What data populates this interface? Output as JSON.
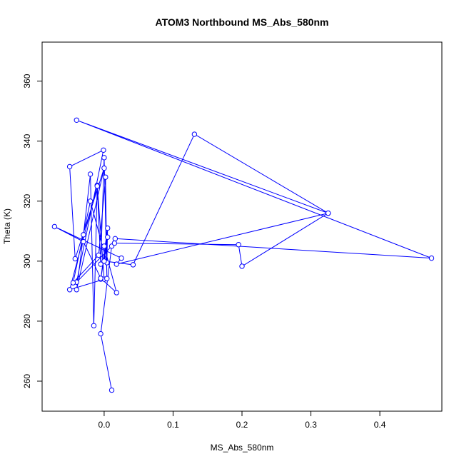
{
  "chart_data": {
    "type": "line",
    "title": "ATOM3 Northbound MS_Abs_580nm",
    "xlabel": "MS_Abs_580nm",
    "ylabel": "Theta (K)",
    "xlim": [
      -0.09,
      0.49
    ],
    "ylim": [
      250,
      373
    ],
    "xticks": [
      0.0,
      0.1,
      0.2,
      0.3,
      0.4
    ],
    "xtick_labels": [
      "0.0",
      "0.1",
      "0.2",
      "0.3",
      "0.4"
    ],
    "yticks": [
      260,
      280,
      300,
      320,
      340,
      360
    ],
    "ytick_labels": [
      "260",
      "280",
      "300",
      "320",
      "340",
      "360"
    ],
    "line_color": "#0000ff",
    "marker": "open-circle",
    "series": [
      {
        "points": [
          [
            0.011,
            257.0
          ],
          [
            -0.005,
            275.8
          ],
          [
            0.011,
            305.0
          ],
          [
            -0.04,
            293.0
          ],
          [
            -0.001,
            337.0
          ],
          [
            -0.05,
            331.5
          ],
          [
            -0.042,
            300.8
          ],
          [
            0.0,
            331.0
          ],
          [
            -0.04,
            290.5
          ],
          [
            -0.03,
            308.8
          ],
          [
            -0.02,
            329.0
          ],
          [
            -0.015,
            278.5
          ],
          [
            -0.01,
            325.3
          ],
          [
            0.0,
            294.0
          ],
          [
            -0.05,
            290.5
          ],
          [
            -0.01,
            325.0
          ],
          [
            -0.005,
            299.0
          ],
          [
            0.0,
            334.5
          ],
          [
            0.004,
            294.2
          ],
          [
            0.002,
            328.0
          ],
          [
            -0.008,
            302.0
          ],
          [
            -0.045,
            292.8
          ],
          [
            -0.02,
            320.0
          ],
          [
            0.004,
            299.5
          ],
          [
            0.005,
            311.0
          ],
          [
            -0.005,
            294.0
          ],
          [
            0.005,
            308.0
          ],
          [
            0.0,
            300.0
          ],
          [
            0.042,
            298.8
          ],
          [
            0.131,
            342.3
          ],
          [
            0.325,
            316.0
          ],
          [
            -0.04,
            347.0
          ],
          [
            0.475,
            301.0
          ],
          [
            0.016,
            307.5
          ],
          [
            0.015,
            306.0
          ],
          [
            0.195,
            305.5
          ],
          [
            0.2,
            298.3
          ],
          [
            0.325,
            316.0
          ],
          [
            0.018,
            299.0
          ],
          [
            0.025,
            301.0
          ],
          [
            -0.072,
            311.5
          ],
          [
            -0.03,
            306.5
          ],
          [
            -0.005,
            294.3
          ],
          [
            0.018,
            289.5
          ],
          [
            0.0,
            305.0
          ]
        ]
      }
    ]
  }
}
